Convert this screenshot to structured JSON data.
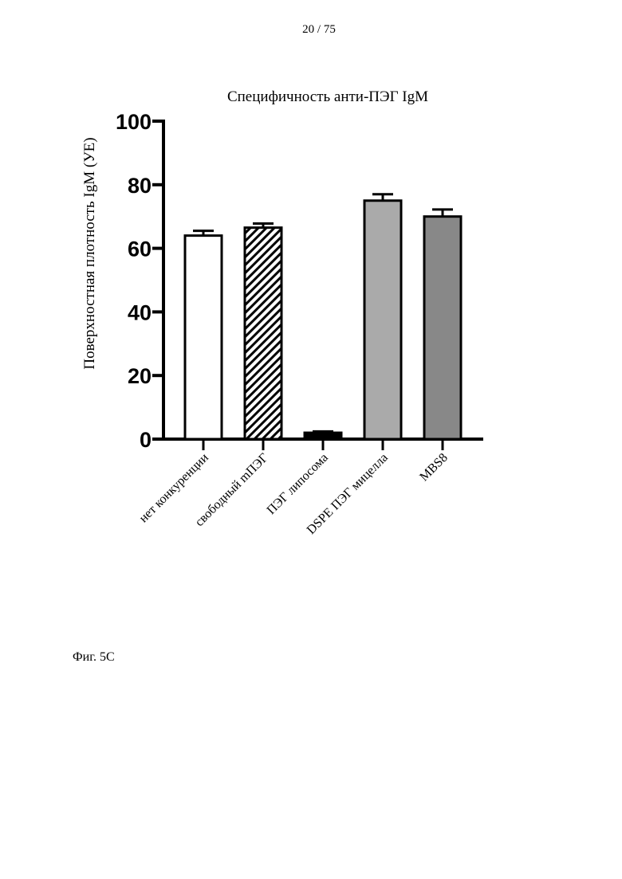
{
  "page": {
    "number": "20 / 75",
    "caption": "Фиг. 5С"
  },
  "chart_data": {
    "type": "bar",
    "title": "Специфичность анти-ПЭГ IgM",
    "xlabel": "",
    "ylabel": "Поверхностная плотность IgM (УЕ)",
    "ylim": [
      0,
      100
    ],
    "yticks": [
      0,
      20,
      40,
      60,
      80,
      100
    ],
    "grid": false,
    "legend": "none",
    "categories": [
      "нет конкуренции",
      "свободный mПЭГ",
      "ПЭГ липосома",
      "DSPE ПЭГ мицелла",
      "MBS8"
    ],
    "values": [
      64,
      66.5,
      2,
      75,
      70
    ],
    "errors": [
      1.5,
      1.3,
      0.4,
      2,
      2.2
    ],
    "fills": [
      "#ffffff",
      "hatch",
      "#000000",
      "#aaaaaa",
      "#888888"
    ]
  }
}
